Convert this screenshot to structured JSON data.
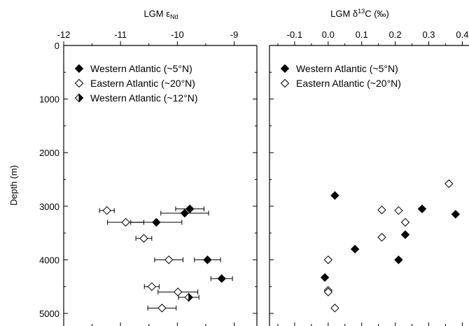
{
  "chart_data": [
    {
      "type": "scatter",
      "title": "",
      "xlabel": "LGM ε",
      "xlabel_sub": "Nd",
      "ylabel": "Depth (m)",
      "xlim": [
        -12,
        -8.6
      ],
      "ylim": [
        5200,
        0
      ],
      "x_ticks": [
        -12,
        -11,
        -10,
        -9
      ],
      "x_tick_labels": [
        "-12",
        "-11",
        "-10",
        "-9"
      ],
      "y_ticks": [
        0,
        1000,
        2000,
        3000,
        4000,
        5000
      ],
      "y_tick_labels": [
        "0",
        "1000",
        "2000",
        "3000",
        "4000",
        "5000"
      ],
      "x_axis_position": "top",
      "grid": false,
      "legend_position": "top-left",
      "series": [
        {
          "name": "Western Atlantic (~5°N)",
          "marker": "filled-diamond",
          "points": [
            {
              "x": -9.78,
              "y": 3050,
              "xerr": 0.25
            },
            {
              "x": -9.87,
              "y": 3130,
              "xerr": 0.42
            },
            {
              "x": -10.37,
              "y": 3300,
              "xerr": 0.45
            },
            {
              "x": -9.47,
              "y": 4000,
              "xerr": 0.23
            },
            {
              "x": -9.22,
              "y": 4350,
              "xerr": 0.19
            }
          ]
        },
        {
          "name": "Eastern Atlantic (~20°N)",
          "marker": "open-diamond",
          "points": [
            {
              "x": -11.24,
              "y": 3080,
              "xerr": 0.13
            },
            {
              "x": -10.91,
              "y": 3300,
              "xerr": 0.32
            },
            {
              "x": -10.59,
              "y": 3600,
              "xerr": 0.14
            },
            {
              "x": -10.15,
              "y": 4000,
              "xerr": 0.25
            },
            {
              "x": -10.45,
              "y": 4500,
              "xerr": 0.13
            },
            {
              "x": -9.99,
              "y": 4600,
              "xerr": 0.35
            },
            {
              "x": -10.27,
              "y": 4900,
              "xerr": 0.25
            }
          ]
        },
        {
          "name": "Western Atlantic (~12°N)",
          "marker": "half-diamond",
          "points": [
            {
              "x": -9.8,
              "y": 4700,
              "xerr": 0.18
            }
          ]
        }
      ]
    },
    {
      "type": "scatter",
      "title": "",
      "xlabel": "LGM δ",
      "xlabel_sup": "13",
      "xlabel_rest": "C (‰)",
      "ylabel": "",
      "xlim": [
        -0.175,
        0.42
      ],
      "ylim": [
        5200,
        0
      ],
      "x_ticks": [
        -0.1,
        0.0,
        0.1,
        0.2,
        0.3,
        0.4
      ],
      "x_tick_labels": [
        "-0.1",
        "0.0",
        "0.1",
        "0.2",
        "0.3",
        "0.4"
      ],
      "y_ticks": [
        0,
        1000,
        2000,
        3000,
        4000,
        5000
      ],
      "x_axis_position": "top",
      "grid": false,
      "legend_position": "top-left",
      "series": [
        {
          "name": "Western Atlantic (~5°N)",
          "marker": "filled-diamond",
          "points": [
            {
              "x": 0.02,
              "y": 2800
            },
            {
              "x": 0.28,
              "y": 3050
            },
            {
              "x": 0.38,
              "y": 3150
            },
            {
              "x": 0.23,
              "y": 3530
            },
            {
              "x": 0.08,
              "y": 3800
            },
            {
              "x": 0.21,
              "y": 4000
            },
            {
              "x": -0.01,
              "y": 4330
            }
          ]
        },
        {
          "name": "Eastern Atlantic (~20°N)",
          "marker": "open-diamond",
          "points": [
            {
              "x": 0.36,
              "y": 2580
            },
            {
              "x": 0.16,
              "y": 3070
            },
            {
              "x": 0.21,
              "y": 3080
            },
            {
              "x": 0.23,
              "y": 3300
            },
            {
              "x": 0.16,
              "y": 3580
            },
            {
              "x": 0.0,
              "y": 4000
            },
            {
              "x": 0.0,
              "y": 4570
            },
            {
              "x": 0.0,
              "y": 4600
            },
            {
              "x": 0.02,
              "y": 4900
            }
          ]
        }
      ]
    }
  ]
}
